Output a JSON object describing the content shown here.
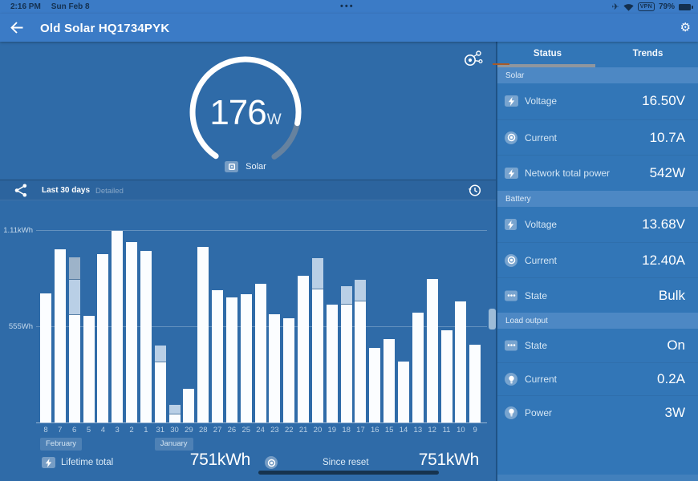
{
  "status_bar": {
    "time": "2:16 PM",
    "date": "Sun Feb 8",
    "center_dots": "•••",
    "vpn_label": "VPN",
    "battery_percent": "79%"
  },
  "app_bar": {
    "title": "Old Solar HQ1734PYK",
    "gear_glyph": "⚙"
  },
  "gauge": {
    "value": "176",
    "unit": "W",
    "label": "Solar"
  },
  "chart_toolbar": {
    "range_label": "Last 30 days",
    "detail_label": "Detailed"
  },
  "chart_data": {
    "type": "bar",
    "unit": "Wh",
    "x_axis_days": [
      "8",
      "7",
      "6",
      "5",
      "4",
      "3",
      "2",
      "1",
      "31",
      "30",
      "29",
      "28",
      "27",
      "26",
      "25",
      "24",
      "23",
      "22",
      "21",
      "20",
      "19",
      "18",
      "17",
      "16",
      "15",
      "14",
      "13",
      "12",
      "11",
      "10",
      "9"
    ],
    "months": [
      {
        "label": "February",
        "bar_index": 0
      },
      {
        "label": "January",
        "bar_index": 8
      }
    ],
    "y_ticks": [
      {
        "label": "1.11kWh",
        "wh": 1110
      },
      {
        "label": "555Wh",
        "wh": 555
      }
    ],
    "bars": [
      {
        "day": "8",
        "yield_wh": 745
      },
      {
        "day": "7",
        "yield_wh": 1000
      },
      {
        "day": "6",
        "yield_wh": 620,
        "overlay_light_wh": 205,
        "overlay_dark_wh": 130
      },
      {
        "day": "5",
        "yield_wh": 615
      },
      {
        "day": "4",
        "yield_wh": 970
      },
      {
        "day": "3",
        "yield_wh": 1105
      },
      {
        "day": "2",
        "yield_wh": 1040
      },
      {
        "day": "1",
        "yield_wh": 990
      },
      {
        "day": "31",
        "yield_wh": 345,
        "overlay_light_wh": 100
      },
      {
        "day": "30",
        "yield_wh": 45,
        "overlay_light_wh": 55
      },
      {
        "day": "29",
        "yield_wh": 195
      },
      {
        "day": "28",
        "yield_wh": 1015
      },
      {
        "day": "27",
        "yield_wh": 765
      },
      {
        "day": "26",
        "yield_wh": 720
      },
      {
        "day": "25",
        "yield_wh": 740
      },
      {
        "day": "24",
        "yield_wh": 800
      },
      {
        "day": "23",
        "yield_wh": 625
      },
      {
        "day": "22",
        "yield_wh": 600
      },
      {
        "day": "21",
        "yield_wh": 845
      },
      {
        "day": "20",
        "yield_wh": 770,
        "overlay_light_wh": 180
      },
      {
        "day": "19",
        "yield_wh": 680
      },
      {
        "day": "18",
        "yield_wh": 680,
        "overlay_light_wh": 105
      },
      {
        "day": "17",
        "yield_wh": 700,
        "overlay_light_wh": 125
      },
      {
        "day": "16",
        "yield_wh": 430
      },
      {
        "day": "15",
        "yield_wh": 480
      },
      {
        "day": "14",
        "yield_wh": 350
      },
      {
        "day": "13",
        "yield_wh": 635
      },
      {
        "day": "12",
        "yield_wh": 830
      },
      {
        "day": "11",
        "yield_wh": 530
      },
      {
        "day": "10",
        "yield_wh": 700
      },
      {
        "day": "9",
        "yield_wh": 450
      }
    ]
  },
  "totals": {
    "lifetime_label": "Lifetime total",
    "lifetime_value": "751kWh",
    "since_reset_label": "Since reset",
    "since_reset_value": "751kWh"
  },
  "panel": {
    "tabs": [
      {
        "label": "Status",
        "selected": true
      },
      {
        "label": "Trends",
        "selected": false
      }
    ],
    "sections": [
      {
        "title": "Solar",
        "rows": [
          {
            "icon": "solar-panel-icon",
            "label": "Voltage",
            "value": "16.50V"
          },
          {
            "icon": "rotor-icon",
            "label": "Current",
            "value": "10.7A"
          },
          {
            "icon": "solar-panel-icon",
            "label": "Network total power",
            "value": "542W"
          }
        ]
      },
      {
        "title": "Battery",
        "rows": [
          {
            "icon": "battery-icon",
            "label": "Voltage",
            "value": "13.68V"
          },
          {
            "icon": "rotor-icon",
            "label": "Current",
            "value": "12.40A"
          },
          {
            "icon": "state-dots-icon",
            "label": "State",
            "value": "Bulk"
          }
        ]
      },
      {
        "title": "Load output",
        "rows": [
          {
            "icon": "state-dots-icon",
            "label": "State",
            "value": "On"
          },
          {
            "icon": "bulb-icon",
            "label": "Current",
            "value": "0.2A"
          },
          {
            "icon": "bulb-icon",
            "label": "Power",
            "value": "3W"
          }
        ]
      }
    ]
  }
}
